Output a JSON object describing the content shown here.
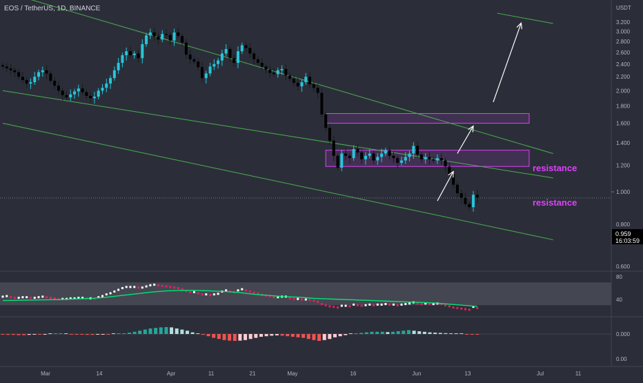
{
  "header": {
    "symbol": "EOS / TetherUS, 1D, BINANCE"
  },
  "price_axis": {
    "unit": "USDT",
    "ticks": [
      "3.200",
      "3.000",
      "2.800",
      "2.600",
      "2.400",
      "2.200",
      "2.000",
      "1.800",
      "1.600",
      "1.400",
      "1.200",
      "1.000",
      "0.800",
      "0.600"
    ],
    "current_price": "0.959",
    "countdown": "16:03:59"
  },
  "rsi_axis": {
    "ticks": [
      "80",
      "40"
    ]
  },
  "osc_axis": {
    "ticks": [
      "0.000",
      "0.00"
    ]
  },
  "time_axis": {
    "ticks": [
      "Mar",
      "14",
      "Apr",
      "11",
      "21",
      "May",
      "16",
      "Jun",
      "13",
      "Jul",
      "11"
    ]
  },
  "annotations": {
    "resistance_upper": "resistance",
    "resistance_lower": "resistance"
  },
  "colors": {
    "up": "#26c6da",
    "down": "#000000",
    "trendline": "#4caf50",
    "box": "#e040fb",
    "rsi_line": "#00e676",
    "rsi_up": "#ffffff",
    "rsi_down": "#e91e63",
    "osc_pos": "#26a69a",
    "osc_neg": "#ef5350",
    "background": "#2b2e39"
  },
  "chart_data": {
    "type": "candlestick",
    "series": [
      {
        "name": "EOS/USDT",
        "closes": [
          2.36,
          2.33,
          2.3,
          2.27,
          2.2,
          2.15,
          2.1,
          2.12,
          2.2,
          2.27,
          2.3,
          2.25,
          2.14,
          2.07,
          2.0,
          1.94,
          1.91,
          1.95,
          1.99,
          2.03,
          1.98,
          1.93,
          1.9,
          1.92,
          2.0,
          2.04,
          2.1,
          2.18,
          2.3,
          2.42,
          2.55,
          2.62,
          2.55,
          2.58,
          2.5,
          2.75,
          2.92,
          2.98,
          2.9,
          2.84,
          2.95,
          2.93,
          2.82,
          2.98,
          2.91,
          2.78,
          2.56,
          2.48,
          2.44,
          2.35,
          2.18,
          2.25,
          2.36,
          2.4,
          2.46,
          2.58,
          2.66,
          2.5,
          2.42,
          2.62,
          2.73,
          2.68,
          2.58,
          2.48,
          2.42,
          2.36,
          2.31,
          2.26,
          2.24,
          2.3,
          2.32,
          2.22,
          2.17,
          2.11,
          2.06,
          2.12,
          2.2,
          2.09,
          2.04,
          1.97,
          1.7,
          1.55,
          1.42,
          1.28,
          1.18,
          1.3,
          1.28,
          1.26,
          1.34,
          1.31,
          1.25,
          1.28,
          1.3,
          1.24,
          1.27,
          1.3,
          1.33,
          1.28,
          1.26,
          1.22,
          1.24,
          1.27,
          1.3,
          1.37,
          1.29,
          1.25,
          1.27,
          1.25,
          1.24,
          1.26,
          1.24,
          1.19,
          1.13,
          1.05,
          0.99,
          0.96,
          0.92,
          0.9,
          0.98,
          0.96
        ],
        "note": "daily closes, left to right, approximate"
      }
    ],
    "rsi": [
      45,
      46,
      44,
      43,
      43,
      44,
      44,
      43,
      43,
      44,
      45,
      44,
      43,
      42,
      40,
      41,
      41,
      42,
      42,
      43,
      43,
      42,
      42,
      41,
      44,
      46,
      49,
      51,
      54,
      57,
      60,
      62,
      62,
      62,
      61,
      61,
      63,
      65,
      66,
      65,
      64,
      63,
      62,
      61,
      60,
      58,
      55,
      53,
      53,
      51,
      49,
      49,
      48,
      49,
      50,
      54,
      56,
      54,
      53,
      56,
      58,
      56,
      54,
      52,
      51,
      48,
      47,
      46,
      44,
      44,
      45,
      45,
      42,
      41,
      41,
      40,
      40,
      39,
      38,
      36,
      32,
      30,
      28,
      27,
      26,
      29,
      29,
      28,
      31,
      30,
      29,
      30,
      31,
      30,
      31,
      31,
      32,
      31,
      31,
      30,
      31,
      32,
      33,
      35,
      33,
      32,
      33,
      32,
      32,
      33,
      32,
      30,
      28,
      26,
      25,
      24,
      23,
      22,
      27,
      25
    ],
    "rsi_signal": [
      38,
      38.5,
      39,
      39.5,
      40,
      41,
      42,
      44,
      47,
      50,
      53,
      55,
      56,
      56,
      55,
      54,
      52,
      49,
      47,
      45,
      44,
      42,
      41,
      40,
      39,
      38,
      37,
      36,
      35,
      34,
      32,
      30,
      28
    ],
    "oscillator": [
      -0.02,
      -0.03,
      -0.03,
      -0.04,
      -0.04,
      -0.03,
      -0.02,
      -0.02,
      -0.01,
      0.0,
      0.01,
      0.01,
      0.0,
      -0.01,
      -0.02,
      -0.02,
      -0.03,
      -0.03,
      -0.02,
      -0.01,
      -0.01,
      0.0,
      0.01,
      0.02,
      0.05,
      0.08,
      0.12,
      0.16,
      0.2,
      0.22,
      0.24,
      0.25,
      0.24,
      0.2,
      0.16,
      0.12,
      0.06,
      0.02,
      -0.03,
      -0.08,
      -0.14,
      -0.18,
      -0.22,
      -0.24,
      -0.25,
      -0.24,
      -0.22,
      -0.18,
      -0.14,
      -0.1,
      -0.08,
      -0.06,
      -0.05,
      -0.06,
      -0.08,
      -0.1,
      -0.12,
      -0.14,
      -0.18,
      -0.22,
      -0.25,
      -0.22,
      -0.18,
      -0.12,
      -0.08,
      -0.04,
      0.0,
      0.02,
      0.04,
      0.06,
      0.08,
      0.08,
      0.08,
      0.07,
      0.08,
      0.1,
      0.12,
      0.14,
      0.12,
      0.1,
      0.08,
      0.06,
      0.05,
      0.04,
      0.03,
      0.02,
      0.01,
      0.0,
      -0.01,
      -0.02,
      -0.02
    ],
    "trendlines": [
      {
        "name": "upper channel",
        "from": [
          0,
          3.95
        ],
        "to": [
          138,
          1.3
        ]
      },
      {
        "name": "middle channel",
        "from": [
          0,
          2.0
        ],
        "to": [
          138,
          1.1
        ]
      },
      {
        "name": "lower channel",
        "from": [
          0,
          1.6
        ],
        "to": [
          138,
          0.72
        ]
      },
      {
        "name": "top-right line",
        "from": [
          124,
          3.4
        ],
        "to": [
          138,
          3.17
        ]
      }
    ],
    "boxes": [
      {
        "label": "resistance",
        "from_index": 81,
        "to_index": 132,
        "low": 1.6,
        "high": 1.71
      },
      {
        "label": "resistance",
        "from_index": 81,
        "to_index": 132,
        "low": 1.19,
        "high": 1.33
      }
    ],
    "arrows": [
      {
        "from": [
          109,
          0.94
        ],
        "to": [
          113,
          1.15
        ]
      },
      {
        "from": [
          114,
          1.3
        ],
        "to": [
          118,
          1.57
        ]
      },
      {
        "from": [
          123,
          1.85
        ],
        "to": [
          130,
          3.18
        ]
      }
    ],
    "ylim": [
      0.5,
      3.4
    ],
    "rsi_ylim": [
      0,
      100
    ],
    "rsi_band": [
      30,
      70
    ],
    "xlabel": "",
    "ylabel": "USDT"
  }
}
